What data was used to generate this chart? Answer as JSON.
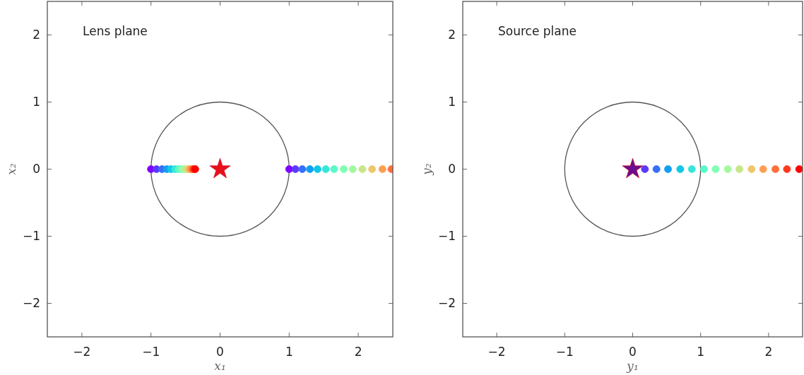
{
  "chart_data": [
    {
      "type": "scatter",
      "title": "Lens plane",
      "xlabel": "x₁",
      "ylabel": "x₂",
      "xlim": [
        -2.5,
        2.5
      ],
      "ylim": [
        -2.5,
        2.5
      ],
      "xticks": [
        -2,
        -1,
        0,
        1,
        2
      ],
      "yticks": [
        -2,
        -1,
        0,
        1,
        2
      ],
      "series": [
        {
          "type": "scatter",
          "marker": "circle",
          "x": [
            -1.0,
            -0.92,
            -0.84,
            -0.77,
            -0.71,
            -0.65,
            -0.6,
            -0.56,
            -0.52,
            -0.49,
            -0.45,
            -0.43,
            -0.4,
            -0.38,
            -0.36
          ],
          "values": [
            0,
            0,
            0,
            0,
            0,
            0,
            0,
            0,
            0,
            0,
            0,
            0,
            0,
            0,
            0
          ],
          "colors": [
            "#8000ff",
            "#5b39fd",
            "#376ff8",
            "#129ff1",
            "#12c7e6",
            "#37e6d8",
            "#5bf9c7",
            "#80ffb4",
            "#a4f99f",
            "#c8e688",
            "#edc76f",
            "#ff9f54",
            "#ff6f39",
            "#ff391d",
            "#ff0000"
          ]
        },
        {
          "type": "scatter",
          "marker": "circle",
          "x": [
            1.0,
            1.09,
            1.19,
            1.3,
            1.41,
            1.53,
            1.65,
            1.79,
            1.92,
            2.06,
            2.2,
            2.35,
            2.48
          ],
          "values": [
            0,
            0,
            0,
            0,
            0,
            0,
            0,
            0,
            0,
            0,
            0,
            0,
            0
          ],
          "colors": [
            "#8000ff",
            "#5b39fd",
            "#376ff8",
            "#129ff1",
            "#12c7e6",
            "#37e6d8",
            "#5bf9c7",
            "#80ffb4",
            "#a4f99f",
            "#c8e688",
            "#edc76f",
            "#ff9f54",
            "#ff6f39"
          ]
        },
        {
          "type": "scatter",
          "marker": "star",
          "color": "#e8101a",
          "x": [
            0
          ],
          "values": [
            0
          ]
        }
      ]
    },
    {
      "type": "scatter",
      "title": "Source plane",
      "xlabel": "y₁",
      "ylabel": "y₂",
      "xlim": [
        -2.5,
        2.5
      ],
      "ylim": [
        -2.5,
        2.5
      ],
      "xticks": [
        -2,
        -1,
        0,
        1,
        2
      ],
      "yticks": [
        -2,
        -1,
        0,
        1,
        2
      ],
      "series": [
        {
          "type": "scatter",
          "marker": "circle",
          "x": [
            0.18,
            0.35,
            0.52,
            0.7,
            0.87,
            1.05,
            1.22,
            1.4,
            1.57,
            1.75,
            1.92,
            2.1,
            2.27,
            2.45
          ],
          "values": [
            0,
            0,
            0,
            0,
            0,
            0,
            0,
            0,
            0,
            0,
            0,
            0,
            0,
            0
          ],
          "colors": [
            "#5b39fd",
            "#376ff8",
            "#129ff1",
            "#12c7e6",
            "#37e6d8",
            "#5bf9c7",
            "#80ffb4",
            "#a4f99f",
            "#c8e688",
            "#edc76f",
            "#ff9f54",
            "#ff6f39",
            "#ff391d",
            "#ff0000"
          ]
        },
        {
          "type": "scatter",
          "marker": "star",
          "color": "#6a0d8f",
          "x": [
            0
          ],
          "values": [
            0
          ]
        }
      ]
    }
  ]
}
